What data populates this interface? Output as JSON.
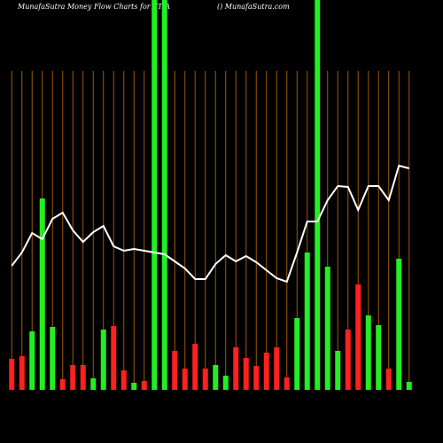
{
  "chart_data": {
    "type": "bar-line",
    "title": "MunafaSutra  Money Flow  Charts for XTIA",
    "subtitle": "() MunafaSutra.com",
    "categories": [
      null,
      null,
      null,
      null,
      null,
      null,
      null,
      null,
      null,
      null,
      null,
      null,
      null,
      null,
      null,
      null,
      null,
      null,
      null,
      null,
      null,
      null,
      null,
      null,
      null,
      null,
      null,
      null,
      null,
      null,
      null,
      null,
      null,
      null,
      null,
      null,
      null,
      null,
      null,
      null
    ],
    "ylim": [
      0,
      440
    ],
    "bars": {
      "values": [
        35,
        38,
        66,
        216,
        71,
        12,
        28,
        28,
        13,
        68,
        72,
        22,
        8,
        10,
        440,
        440,
        44,
        24,
        52,
        24,
        28,
        16,
        48,
        36,
        27,
        42,
        48,
        14,
        81,
        155,
        440,
        139,
        44,
        68,
        119,
        84,
        73,
        24,
        148,
        9
      ],
      "colors": [
        "#ff2020",
        "#ff2020",
        "#22ee22",
        "#22ee22",
        "#22ee22",
        "#ff2020",
        "#ff2020",
        "#ff2020",
        "#22ee22",
        "#22ee22",
        "#ff2020",
        "#ff2020",
        "#22ee22",
        "#ff2020",
        "#22ee22",
        "#22ee22",
        "#ff2020",
        "#ff2020",
        "#ff2020",
        "#ff2020",
        "#22ee22",
        "#22ee22",
        "#ff2020",
        "#ff2020",
        "#ff2020",
        "#ff2020",
        "#ff2020",
        "#ff2020",
        "#22ee22",
        "#22ee22",
        "#22ee22",
        "#22ee22",
        "#22ee22",
        "#ff2020",
        "#ff2020",
        "#22ee22",
        "#22ee22",
        "#ff2020",
        "#22ee22",
        "#22ee22"
      ]
    },
    "line": {
      "color": "#ffffff",
      "values": [
        140,
        155,
        177,
        170,
        193,
        200,
        180,
        167,
        178,
        185,
        162,
        157,
        159,
        157,
        155,
        153,
        145,
        137,
        125,
        125,
        142,
        152,
        145,
        151,
        144,
        135,
        126,
        122,
        155,
        190,
        190,
        214,
        230,
        229,
        203,
        230,
        230,
        214,
        253,
        250
      ]
    }
  }
}
